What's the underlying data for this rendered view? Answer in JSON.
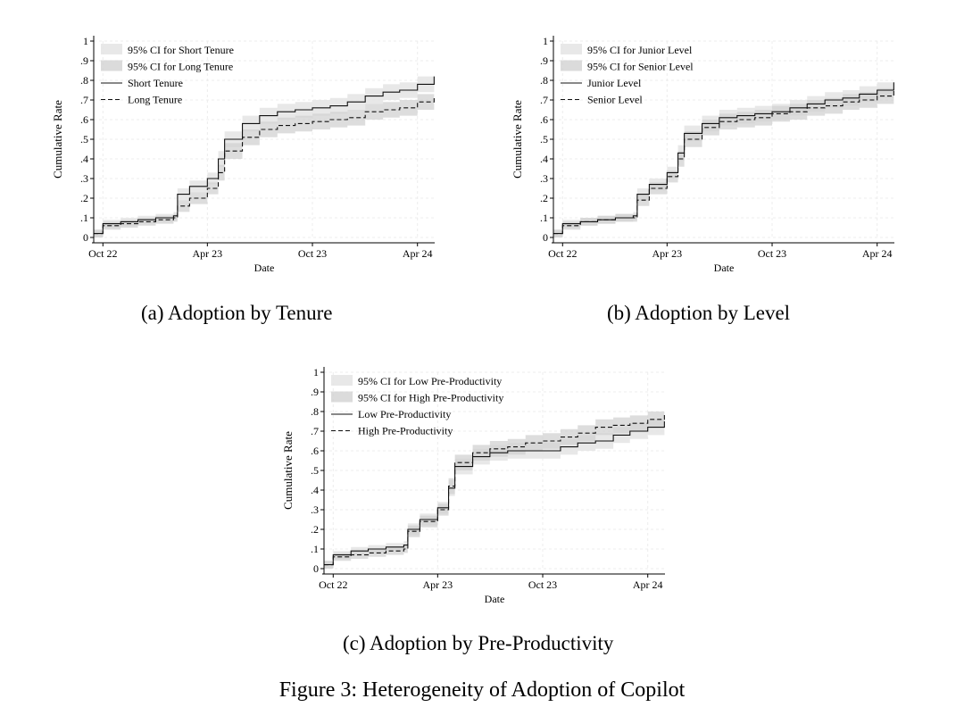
{
  "figure_caption": "Figure 3: Heterogeneity of Adoption of Copilot",
  "colors": {
    "ci_light": "#e6e6e6",
    "ci_dark": "#d2d2d2",
    "line": "#111111",
    "grid": "#ececec"
  },
  "panels": [
    {
      "caption": "(a) Adoption by Tenure",
      "ylabel": "Cumulative Rate",
      "xlabel": "Date",
      "legend": [
        "95% CI for Short Tenure",
        "95% CI for Long Tenure",
        "Short Tenure",
        "Long Tenure"
      ]
    },
    {
      "caption": "(b) Adoption by Level",
      "ylabel": "Cumulative Rate",
      "xlabel": "Date",
      "legend": [
        "95% CI for Junior Level",
        "95% CI for Senior Level",
        "Junior Level",
        "Senior Level"
      ]
    },
    {
      "caption": "(c) Adoption by Pre-Productivity",
      "ylabel": "Cumulative Rate",
      "xlabel": "Date",
      "legend": [
        "95% CI for Low Pre-Productivity",
        "95% CI for High Pre-Productivity",
        "Low Pre-Productivity",
        "High Pre-Productivity"
      ]
    }
  ],
  "chart_data": [
    {
      "type": "line",
      "caption": "(a) Adoption by Tenure",
      "xlabel": "Date",
      "ylabel": "Cumulative Rate",
      "x_ticks": [
        "Oct 22",
        "Apr 23",
        "Oct 23",
        "Apr 24"
      ],
      "y_ticks": [
        "0",
        ".1",
        ".2",
        ".3",
        ".4",
        ".5",
        ".6",
        ".7",
        ".8",
        ".9",
        "1"
      ],
      "xlim": [
        "2022-09-15",
        "2024-05-01"
      ],
      "ylim": [
        0,
        1
      ],
      "legend_position": "top-left",
      "grid": true,
      "x": [
        "2022-09-15",
        "2022-10-01",
        "2022-11-01",
        "2022-12-01",
        "2023-01-01",
        "2023-02-01",
        "2023-02-08",
        "2023-03-01",
        "2023-04-01",
        "2023-04-20",
        "2023-05-01",
        "2023-06-01",
        "2023-07-01",
        "2023-08-01",
        "2023-09-01",
        "2023-10-01",
        "2023-11-01",
        "2023-12-01",
        "2024-01-01",
        "2024-02-01",
        "2024-03-01",
        "2024-04-01",
        "2024-04-30"
      ],
      "series": [
        {
          "name": "Short Tenure",
          "style": "solid",
          "values": [
            0.02,
            0.07,
            0.08,
            0.09,
            0.1,
            0.11,
            0.22,
            0.26,
            0.3,
            0.4,
            0.5,
            0.58,
            0.62,
            0.64,
            0.65,
            0.66,
            0.67,
            0.69,
            0.72,
            0.74,
            0.75,
            0.78,
            0.82
          ],
          "ci_low": [
            0.0,
            0.05,
            0.06,
            0.07,
            0.08,
            0.09,
            0.19,
            0.23,
            0.27,
            0.36,
            0.46,
            0.54,
            0.58,
            0.6,
            0.61,
            0.62,
            0.63,
            0.65,
            0.68,
            0.7,
            0.71,
            0.74,
            0.78
          ],
          "ci_high": [
            0.04,
            0.09,
            0.1,
            0.11,
            0.12,
            0.13,
            0.25,
            0.29,
            0.33,
            0.44,
            0.54,
            0.62,
            0.66,
            0.68,
            0.69,
            0.7,
            0.71,
            0.73,
            0.76,
            0.78,
            0.79,
            0.82,
            0.86
          ]
        },
        {
          "name": "Long Tenure",
          "style": "dashed",
          "values": [
            0.02,
            0.06,
            0.07,
            0.08,
            0.09,
            0.1,
            0.16,
            0.2,
            0.25,
            0.33,
            0.44,
            0.51,
            0.55,
            0.57,
            0.58,
            0.59,
            0.6,
            0.61,
            0.64,
            0.65,
            0.66,
            0.69,
            0.72
          ],
          "ci_low": [
            0.0,
            0.04,
            0.05,
            0.06,
            0.07,
            0.08,
            0.13,
            0.17,
            0.22,
            0.29,
            0.4,
            0.47,
            0.51,
            0.53,
            0.54,
            0.55,
            0.56,
            0.57,
            0.6,
            0.61,
            0.62,
            0.65,
            0.68
          ],
          "ci_high": [
            0.04,
            0.08,
            0.09,
            0.1,
            0.11,
            0.12,
            0.19,
            0.23,
            0.28,
            0.37,
            0.48,
            0.55,
            0.59,
            0.61,
            0.62,
            0.63,
            0.64,
            0.65,
            0.68,
            0.69,
            0.7,
            0.73,
            0.76
          ]
        }
      ]
    },
    {
      "type": "line",
      "caption": "(b) Adoption by Level",
      "xlabel": "Date",
      "ylabel": "Cumulative Rate",
      "x_ticks": [
        "Oct 22",
        "Apr 23",
        "Oct 23",
        "Apr 24"
      ],
      "y_ticks": [
        "0",
        ".1",
        ".2",
        ".3",
        ".4",
        ".5",
        ".6",
        ".7",
        ".8",
        ".9",
        "1"
      ],
      "xlim": [
        "2022-09-15",
        "2024-05-01"
      ],
      "ylim": [
        0,
        1
      ],
      "legend_position": "top-left",
      "grid": true,
      "x": [
        "2022-09-15",
        "2022-10-01",
        "2022-11-01",
        "2022-12-01",
        "2023-01-01",
        "2023-02-01",
        "2023-02-08",
        "2023-03-01",
        "2023-04-01",
        "2023-04-20",
        "2023-05-01",
        "2023-06-01",
        "2023-07-01",
        "2023-08-01",
        "2023-09-01",
        "2023-10-01",
        "2023-11-01",
        "2023-12-01",
        "2024-01-01",
        "2024-02-01",
        "2024-03-01",
        "2024-04-01",
        "2024-04-30"
      ],
      "series": [
        {
          "name": "Junior Level",
          "style": "solid",
          "values": [
            0.02,
            0.07,
            0.08,
            0.09,
            0.1,
            0.11,
            0.22,
            0.27,
            0.33,
            0.43,
            0.53,
            0.58,
            0.61,
            0.62,
            0.63,
            0.64,
            0.66,
            0.68,
            0.7,
            0.71,
            0.73,
            0.75,
            0.79
          ],
          "ci_low": [
            0.0,
            0.05,
            0.06,
            0.07,
            0.08,
            0.09,
            0.19,
            0.24,
            0.3,
            0.39,
            0.49,
            0.54,
            0.57,
            0.58,
            0.59,
            0.6,
            0.62,
            0.64,
            0.66,
            0.67,
            0.69,
            0.71,
            0.75
          ],
          "ci_high": [
            0.04,
            0.09,
            0.1,
            0.11,
            0.12,
            0.13,
            0.25,
            0.3,
            0.36,
            0.47,
            0.57,
            0.62,
            0.65,
            0.66,
            0.67,
            0.68,
            0.7,
            0.72,
            0.74,
            0.75,
            0.77,
            0.79,
            0.83
          ]
        },
        {
          "name": "Senior Level",
          "style": "dashed",
          "values": [
            0.02,
            0.06,
            0.08,
            0.09,
            0.1,
            0.1,
            0.19,
            0.25,
            0.31,
            0.4,
            0.5,
            0.56,
            0.59,
            0.6,
            0.61,
            0.63,
            0.64,
            0.66,
            0.67,
            0.69,
            0.7,
            0.72,
            0.75
          ],
          "ci_low": [
            0.0,
            0.04,
            0.06,
            0.07,
            0.08,
            0.08,
            0.16,
            0.22,
            0.28,
            0.36,
            0.46,
            0.52,
            0.55,
            0.56,
            0.57,
            0.59,
            0.6,
            0.62,
            0.63,
            0.65,
            0.66,
            0.68,
            0.71
          ],
          "ci_high": [
            0.04,
            0.08,
            0.1,
            0.11,
            0.12,
            0.12,
            0.22,
            0.28,
            0.34,
            0.44,
            0.54,
            0.6,
            0.63,
            0.64,
            0.65,
            0.67,
            0.68,
            0.7,
            0.71,
            0.73,
            0.74,
            0.76,
            0.79
          ]
        }
      ]
    },
    {
      "type": "line",
      "caption": "(c) Adoption by Pre-Productivity",
      "xlabel": "Date",
      "ylabel": "Cumulative Rate",
      "x_ticks": [
        "Oct 22",
        "Apr 23",
        "Oct 23",
        "Apr 24"
      ],
      "y_ticks": [
        "0",
        ".1",
        ".2",
        ".3",
        ".4",
        ".5",
        ".6",
        ".7",
        ".8",
        ".9",
        "1"
      ],
      "xlim": [
        "2022-09-15",
        "2024-05-01"
      ],
      "ylim": [
        0,
        1
      ],
      "legend_position": "top-left",
      "grid": true,
      "x": [
        "2022-09-15",
        "2022-10-01",
        "2022-11-01",
        "2022-12-01",
        "2023-01-01",
        "2023-02-01",
        "2023-02-08",
        "2023-03-01",
        "2023-04-01",
        "2023-04-20",
        "2023-05-01",
        "2023-06-01",
        "2023-07-01",
        "2023-08-01",
        "2023-09-01",
        "2023-10-01",
        "2023-11-01",
        "2023-12-01",
        "2024-01-01",
        "2024-02-01",
        "2024-03-01",
        "2024-04-01",
        "2024-04-30"
      ],
      "series": [
        {
          "name": "Low Pre-Productivity",
          "style": "solid",
          "values": [
            0.02,
            0.07,
            0.09,
            0.1,
            0.11,
            0.12,
            0.2,
            0.25,
            0.31,
            0.41,
            0.52,
            0.57,
            0.59,
            0.6,
            0.6,
            0.6,
            0.62,
            0.64,
            0.65,
            0.68,
            0.7,
            0.72,
            0.75
          ],
          "ci_low": [
            0.0,
            0.05,
            0.07,
            0.08,
            0.09,
            0.1,
            0.17,
            0.22,
            0.28,
            0.37,
            0.48,
            0.53,
            0.55,
            0.56,
            0.56,
            0.56,
            0.58,
            0.6,
            0.61,
            0.64,
            0.66,
            0.68,
            0.71
          ],
          "ci_high": [
            0.04,
            0.09,
            0.11,
            0.12,
            0.13,
            0.14,
            0.23,
            0.28,
            0.34,
            0.45,
            0.56,
            0.61,
            0.63,
            0.64,
            0.64,
            0.64,
            0.66,
            0.68,
            0.69,
            0.72,
            0.74,
            0.76,
            0.79
          ]
        },
        {
          "name": "High Pre-Productivity",
          "style": "dashed",
          "values": [
            0.02,
            0.06,
            0.07,
            0.08,
            0.09,
            0.1,
            0.19,
            0.24,
            0.3,
            0.42,
            0.54,
            0.59,
            0.61,
            0.62,
            0.64,
            0.65,
            0.67,
            0.69,
            0.72,
            0.73,
            0.74,
            0.76,
            0.79
          ],
          "ci_low": [
            0.0,
            0.04,
            0.05,
            0.06,
            0.07,
            0.08,
            0.16,
            0.21,
            0.27,
            0.38,
            0.5,
            0.55,
            0.57,
            0.58,
            0.6,
            0.61,
            0.63,
            0.65,
            0.68,
            0.69,
            0.7,
            0.72,
            0.75
          ],
          "ci_high": [
            0.04,
            0.08,
            0.09,
            0.1,
            0.11,
            0.12,
            0.22,
            0.27,
            0.33,
            0.46,
            0.58,
            0.63,
            0.65,
            0.66,
            0.68,
            0.69,
            0.71,
            0.73,
            0.76,
            0.77,
            0.78,
            0.8,
            0.83
          ]
        }
      ]
    }
  ]
}
